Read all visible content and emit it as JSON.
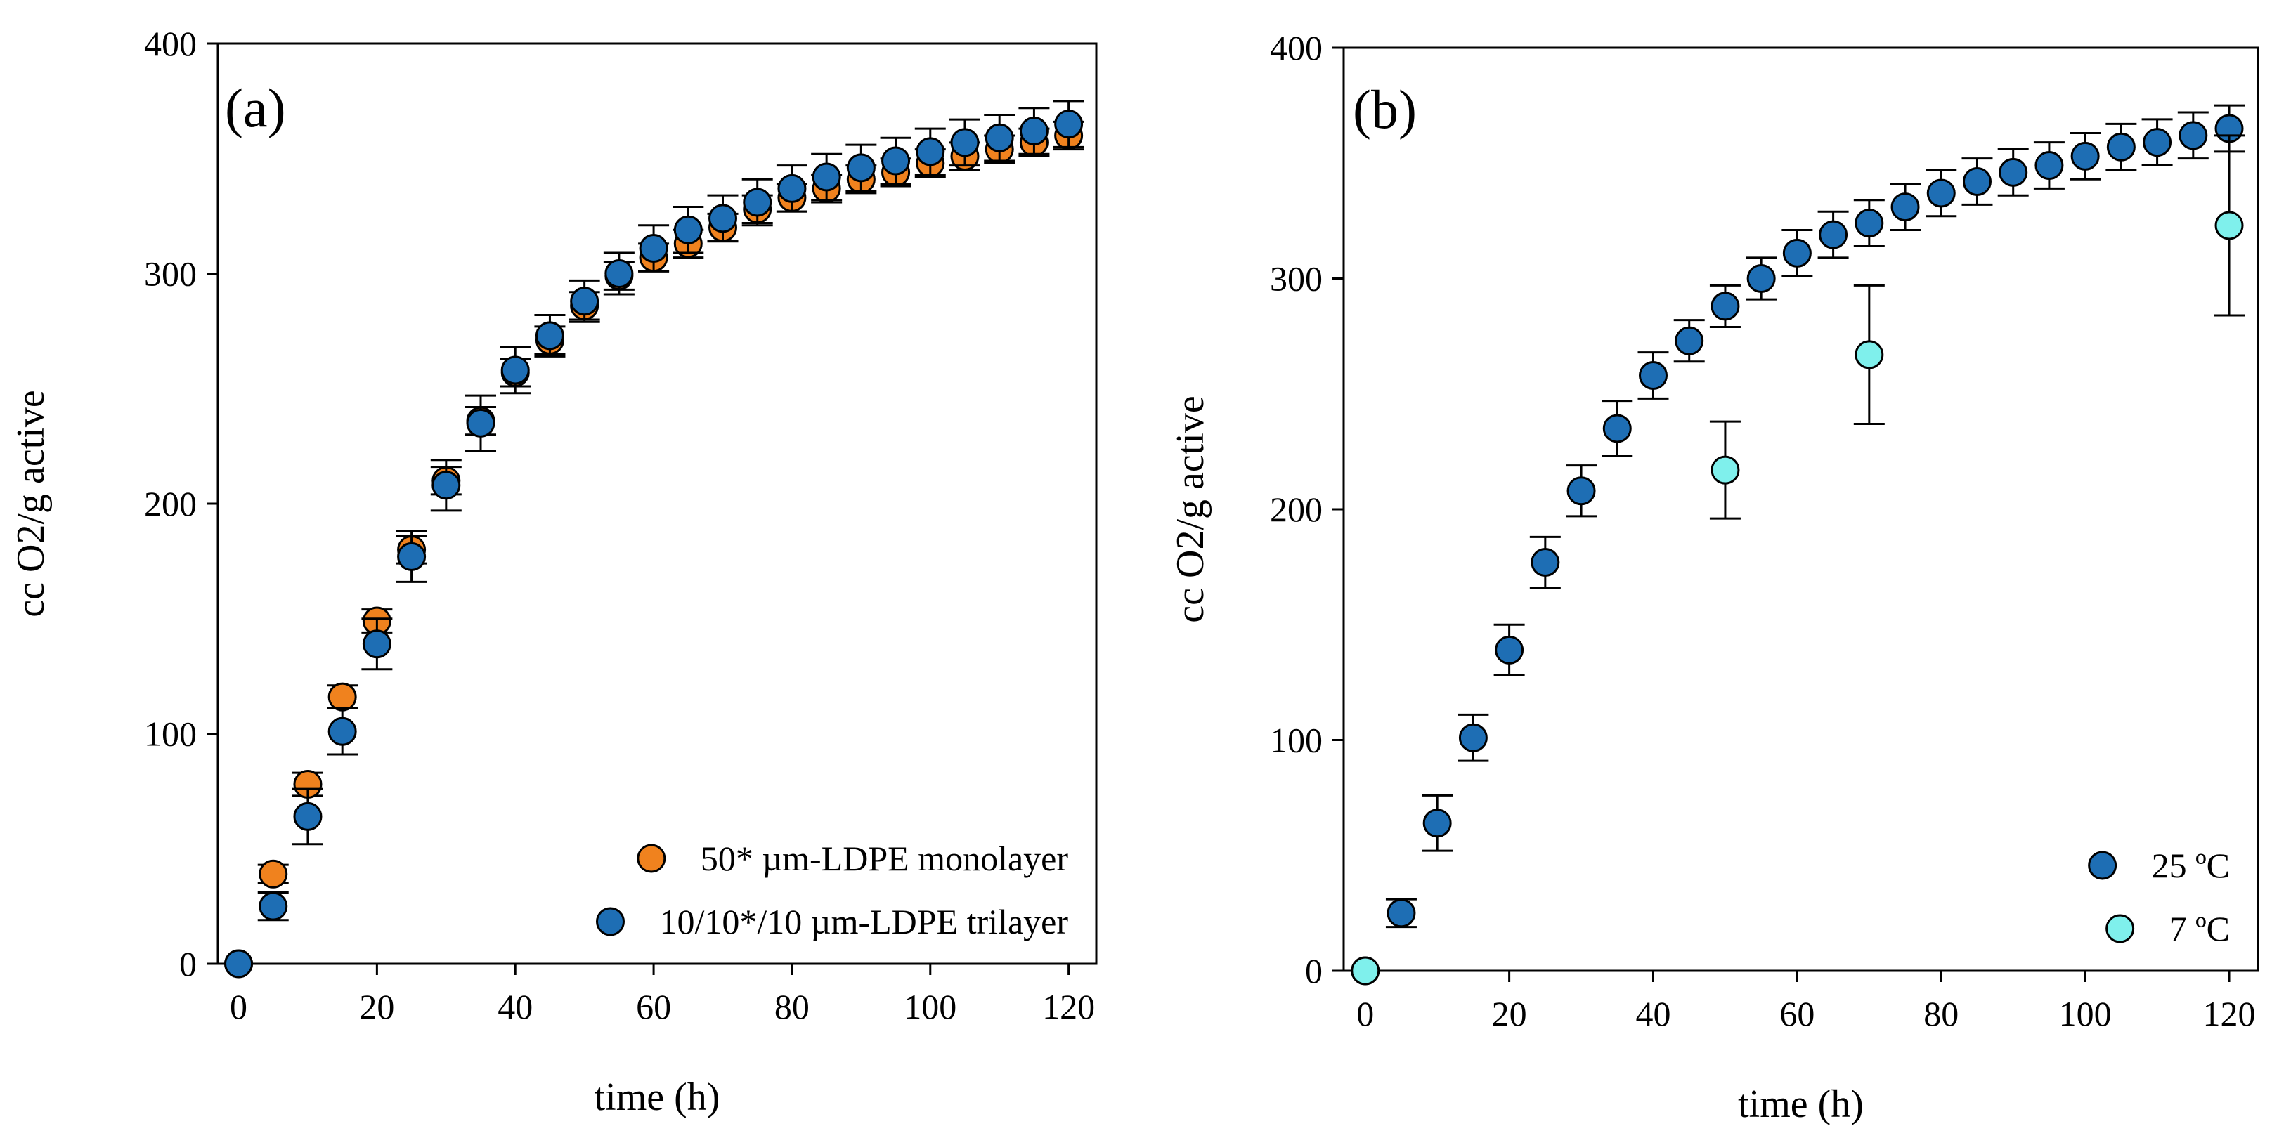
{
  "figure": {
    "panels": [
      "a",
      "b"
    ]
  },
  "chart_data": [
    {
      "type": "scatter",
      "panel_label": "(a)",
      "xlabel": "time (h)",
      "ylabel": "cc O2/g active",
      "xlim": [
        -3,
        124
      ],
      "ylim": [
        0,
        400
      ],
      "xticks": [
        "0",
        "20",
        "40",
        "60",
        "80",
        "100",
        "120"
      ],
      "yticks": [
        "0",
        "100",
        "200",
        "300",
        "400"
      ],
      "legend_position": "bottom-right",
      "grid": false,
      "series": [
        {
          "name": "50* µm-LDPE monolayer",
          "color": "#f0821e",
          "x": [
            0,
            5,
            10,
            15,
            20,
            25,
            30,
            35,
            40,
            45,
            50,
            55,
            60,
            65,
            70,
            75,
            80,
            85,
            90,
            95,
            100,
            105,
            110,
            115,
            120
          ],
          "y": [
            0,
            39,
            78,
            116,
            149,
            180,
            210,
            236,
            257,
            271,
            286,
            299,
            307,
            313,
            320,
            328,
            333,
            337,
            341,
            344,
            348,
            351,
            354,
            357,
            360
          ],
          "err": [
            0,
            4,
            5,
            5,
            5,
            6,
            6,
            6,
            6,
            6,
            6,
            6,
            6,
            6,
            6,
            6,
            6,
            6,
            6,
            6,
            6,
            6,
            6,
            6,
            6
          ]
        },
        {
          "name": "10/10*/10 µm-LDPE trilayer",
          "color": "#1e6eb4",
          "x": [
            0,
            5,
            10,
            15,
            20,
            25,
            30,
            35,
            40,
            45,
            50,
            55,
            60,
            65,
            70,
            75,
            80,
            85,
            90,
            95,
            100,
            105,
            110,
            115,
            120
          ],
          "y": [
            0,
            25,
            64,
            101,
            139,
            177,
            208,
            235,
            258,
            273,
            288,
            300,
            311,
            319,
            324,
            331,
            337,
            342,
            346,
            349,
            353,
            357,
            359,
            362,
            365
          ],
          "err": [
            0,
            6,
            12,
            10,
            11,
            11,
            11,
            12,
            10,
            9,
            9,
            9,
            10,
            10,
            10,
            10,
            10,
            10,
            10,
            10,
            10,
            10,
            10,
            10,
            10
          ]
        }
      ]
    },
    {
      "type": "scatter",
      "panel_label": "(b)",
      "xlabel": "time (h)",
      "ylabel": "cc O2/g active",
      "xlim": [
        -3,
        124
      ],
      "ylim": [
        0,
        400
      ],
      "xticks": [
        "0",
        "20",
        "40",
        "60",
        "80",
        "100",
        "120"
      ],
      "yticks": [
        "0",
        "100",
        "200",
        "300",
        "400"
      ],
      "legend_position": "bottom-right",
      "grid": false,
      "series": [
        {
          "name": "25 ºC",
          "color": "#1e6eb4",
          "x": [
            0,
            5,
            10,
            15,
            20,
            25,
            30,
            35,
            40,
            45,
            50,
            55,
            60,
            65,
            70,
            75,
            80,
            85,
            90,
            95,
            100,
            105,
            110,
            115,
            120
          ],
          "y": [
            0,
            25,
            64,
            101,
            139,
            177,
            208,
            235,
            258,
            273,
            288,
            300,
            311,
            319,
            324,
            331,
            337,
            342,
            346,
            349,
            353,
            357,
            359,
            362,
            365
          ],
          "err": [
            0,
            6,
            12,
            10,
            11,
            11,
            11,
            12,
            10,
            9,
            9,
            9,
            10,
            10,
            10,
            10,
            10,
            10,
            10,
            10,
            10,
            10,
            10,
            10,
            10
          ]
        },
        {
          "name": "7 ºC",
          "color": "#7ff0ec",
          "x": [
            0,
            50,
            70,
            120
          ],
          "y": [
            0,
            217,
            267,
            323
          ],
          "err": [
            0,
            21,
            30,
            39
          ]
        }
      ]
    }
  ]
}
